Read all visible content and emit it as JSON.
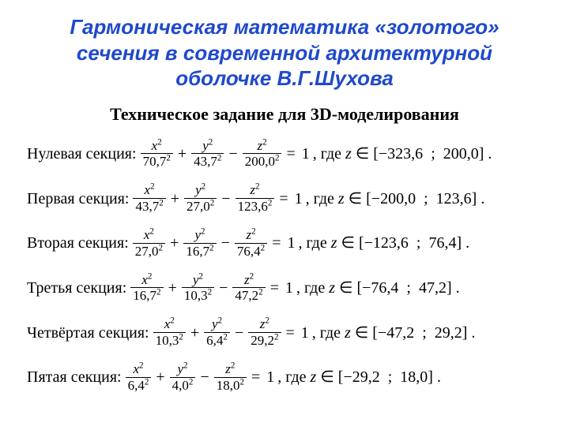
{
  "title": {
    "line1": "Гармоническая математика «золотого»",
    "line2": "сечения в современной архитектурной",
    "line3": "оболочке В.Г.Шухова"
  },
  "subtitle": "Техническое  задание для 3D-моделирования",
  "labels": {
    "where": ", где"
  },
  "colors": {
    "title": "#1f49cc",
    "text": "#000000",
    "background": "#ffffff"
  },
  "typography": {
    "title_family": "Arial",
    "title_size_pt": 20,
    "title_weight": "bold",
    "title_style": "italic",
    "body_family": "Times New Roman",
    "body_size_pt": 15,
    "subtitle_size_pt": 17,
    "subtitle_weight": "bold"
  },
  "sections": [
    {
      "label": "Нулевая секция:",
      "a": "70,7",
      "b": "43,7",
      "c": "200,0",
      "zlow": "−323,6",
      "zhigh": "200,0"
    },
    {
      "label": "Первая секция:",
      "a": "43,7",
      "b": "27,0",
      "c": "123,6",
      "zlow": "−200,0",
      "zhigh": "123,6"
    },
    {
      "label": "Вторая секция:",
      "a": "27,0",
      "b": "16,7",
      "c": "76,4",
      "zlow": "−123,6",
      "zhigh": "76,4"
    },
    {
      "label": "Третья секция:",
      "a": "16,7",
      "b": "10,3",
      "c": "47,2",
      "zlow": "−76,4",
      "zhigh": "47,2"
    },
    {
      "label": "Четвёртая секция:",
      "a": "10,3",
      "b": "6,4",
      "c": "29,2",
      "zlow": "−47,2",
      "zhigh": "29,2"
    },
    {
      "label": "Пятая секция:",
      "a": "6,4",
      "b": "4,0",
      "c": "18,0",
      "zlow": "−29,2",
      "zhigh": "18,0"
    }
  ]
}
